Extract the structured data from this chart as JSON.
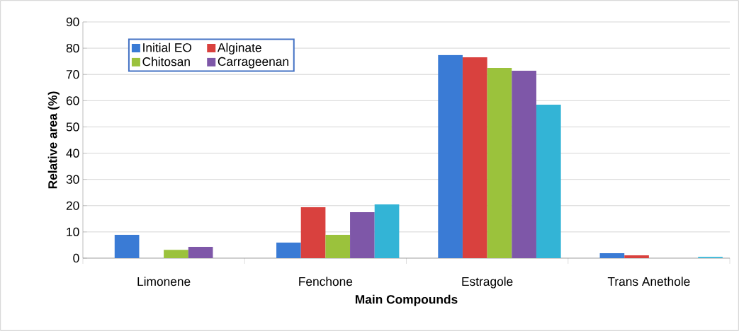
{
  "chart_data": {
    "type": "bar",
    "xlabel": "Main Compounds",
    "ylabel": "Relative area  (%)",
    "categories": [
      "Limonene",
      "Fenchone",
      "Estragole",
      "Trans Anethole"
    ],
    "series": [
      {
        "name": "Initial EO",
        "color": "#3a7bd5",
        "values": [
          8.9,
          5.9,
          77.4,
          1.9
        ]
      },
      {
        "name": "Alginate",
        "color": "#d9413e",
        "values": [
          0,
          19.4,
          76.5,
          1.1
        ]
      },
      {
        "name": "Chitosan",
        "color": "#9bc23c",
        "values": [
          3.2,
          8.9,
          72.5,
          0
        ]
      },
      {
        "name": "Carrageenan",
        "color": "#7e57a8",
        "values": [
          4.3,
          17.5,
          71.4,
          0
        ]
      },
      {
        "color": "#33b4d6",
        "values": [
          0,
          20.5,
          58.5,
          0.5
        ]
      }
    ],
    "ylim": [
      0,
      90
    ],
    "yticks": [
      0,
      10,
      20,
      30,
      40,
      50,
      60,
      70,
      80,
      90
    ],
    "grid": "y",
    "legend": "top left"
  }
}
